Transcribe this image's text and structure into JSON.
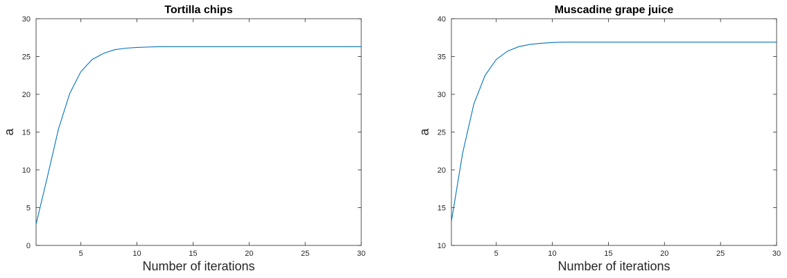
{
  "chart_data": [
    {
      "type": "line",
      "title": "Tortilla chips",
      "xlabel": "Number of iterations",
      "ylabel": "a",
      "xlim": [
        1,
        30
      ],
      "ylim": [
        0,
        30
      ],
      "xticks": [
        5,
        10,
        15,
        20,
        25,
        30
      ],
      "yticks": [
        0,
        5,
        10,
        15,
        20,
        25,
        30
      ],
      "grid": false,
      "color": "#0072BD",
      "series": [
        {
          "x": [
            1,
            2,
            3,
            4,
            5,
            6,
            7,
            8,
            9,
            10,
            11,
            12,
            13,
            14,
            15,
            16,
            17,
            18,
            19,
            20,
            21,
            22,
            23,
            24,
            25,
            26,
            27,
            28,
            29,
            30
          ],
          "values": [
            2.8,
            9.0,
            15.4,
            20.1,
            23.0,
            24.6,
            25.4,
            25.9,
            26.1,
            26.2,
            26.25,
            26.3,
            26.3,
            26.3,
            26.3,
            26.3,
            26.3,
            26.3,
            26.3,
            26.3,
            26.3,
            26.3,
            26.3,
            26.3,
            26.3,
            26.3,
            26.3,
            26.3,
            26.3,
            26.3
          ]
        }
      ]
    },
    {
      "type": "line",
      "title": "Muscadine grape juice",
      "xlabel": "Number of iterations",
      "ylabel": "a",
      "xlim": [
        1,
        30
      ],
      "ylim": [
        10,
        40
      ],
      "xticks": [
        5,
        10,
        15,
        20,
        25,
        30
      ],
      "yticks": [
        10,
        15,
        20,
        25,
        30,
        35,
        40
      ],
      "grid": false,
      "color": "#0072BD",
      "series": [
        {
          "x": [
            1,
            2,
            3,
            4,
            5,
            6,
            7,
            8,
            9,
            10,
            11,
            12,
            13,
            14,
            15,
            16,
            17,
            18,
            19,
            20,
            21,
            22,
            23,
            24,
            25,
            26,
            27,
            28,
            29,
            30
          ],
          "values": [
            13.2,
            22.2,
            28.7,
            32.5,
            34.6,
            35.7,
            36.3,
            36.6,
            36.75,
            36.85,
            36.9,
            36.9,
            36.9,
            36.9,
            36.9,
            36.9,
            36.9,
            36.9,
            36.9,
            36.9,
            36.9,
            36.9,
            36.9,
            36.9,
            36.9,
            36.9,
            36.9,
            36.9,
            36.9,
            36.9
          ]
        }
      ]
    }
  ]
}
